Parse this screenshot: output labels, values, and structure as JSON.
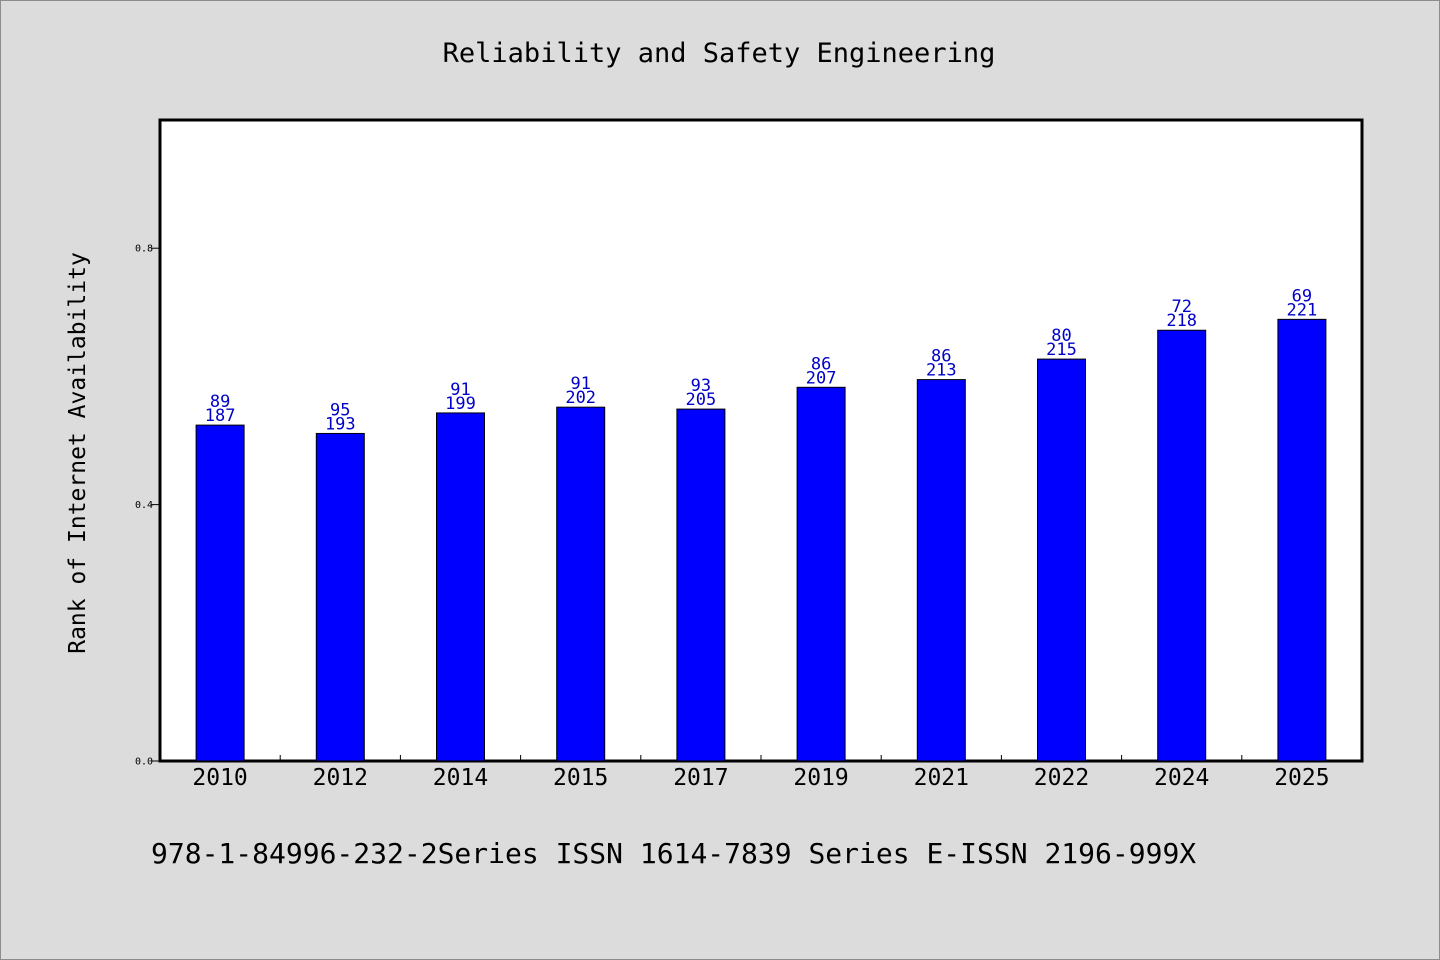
{
  "chart_data": {
    "type": "bar",
    "title": "Reliability and Safety Engineering",
    "xlabel": "",
    "ylabel": "Rank of Internet Availability",
    "footer": "978-1-84996-232-2Series ISSN 1614-7839 Series E-ISSN 2196-999X",
    "categories": [
      "2010",
      "2012",
      "2014",
      "2015",
      "2017",
      "2019",
      "2021",
      "2022",
      "2024",
      "2025"
    ],
    "values": [
      0.524,
      0.511,
      0.543,
      0.552,
      0.549,
      0.583,
      0.595,
      0.627,
      0.672,
      0.689
    ],
    "labels_top": [
      "89",
      "95",
      "91",
      "91",
      "93",
      "86",
      "86",
      "80",
      "72",
      "69"
    ],
    "labels_bottom": [
      "187",
      "193",
      "199",
      "202",
      "205",
      "207",
      "213",
      "215",
      "218",
      "221"
    ],
    "yticks": [
      "0.0",
      "0.4",
      "0.8"
    ],
    "ylim": [
      0,
      1.0
    ],
    "grid": false,
    "legend": "none",
    "bar_color": "#0000ff",
    "label_color": "#0000c8"
  }
}
